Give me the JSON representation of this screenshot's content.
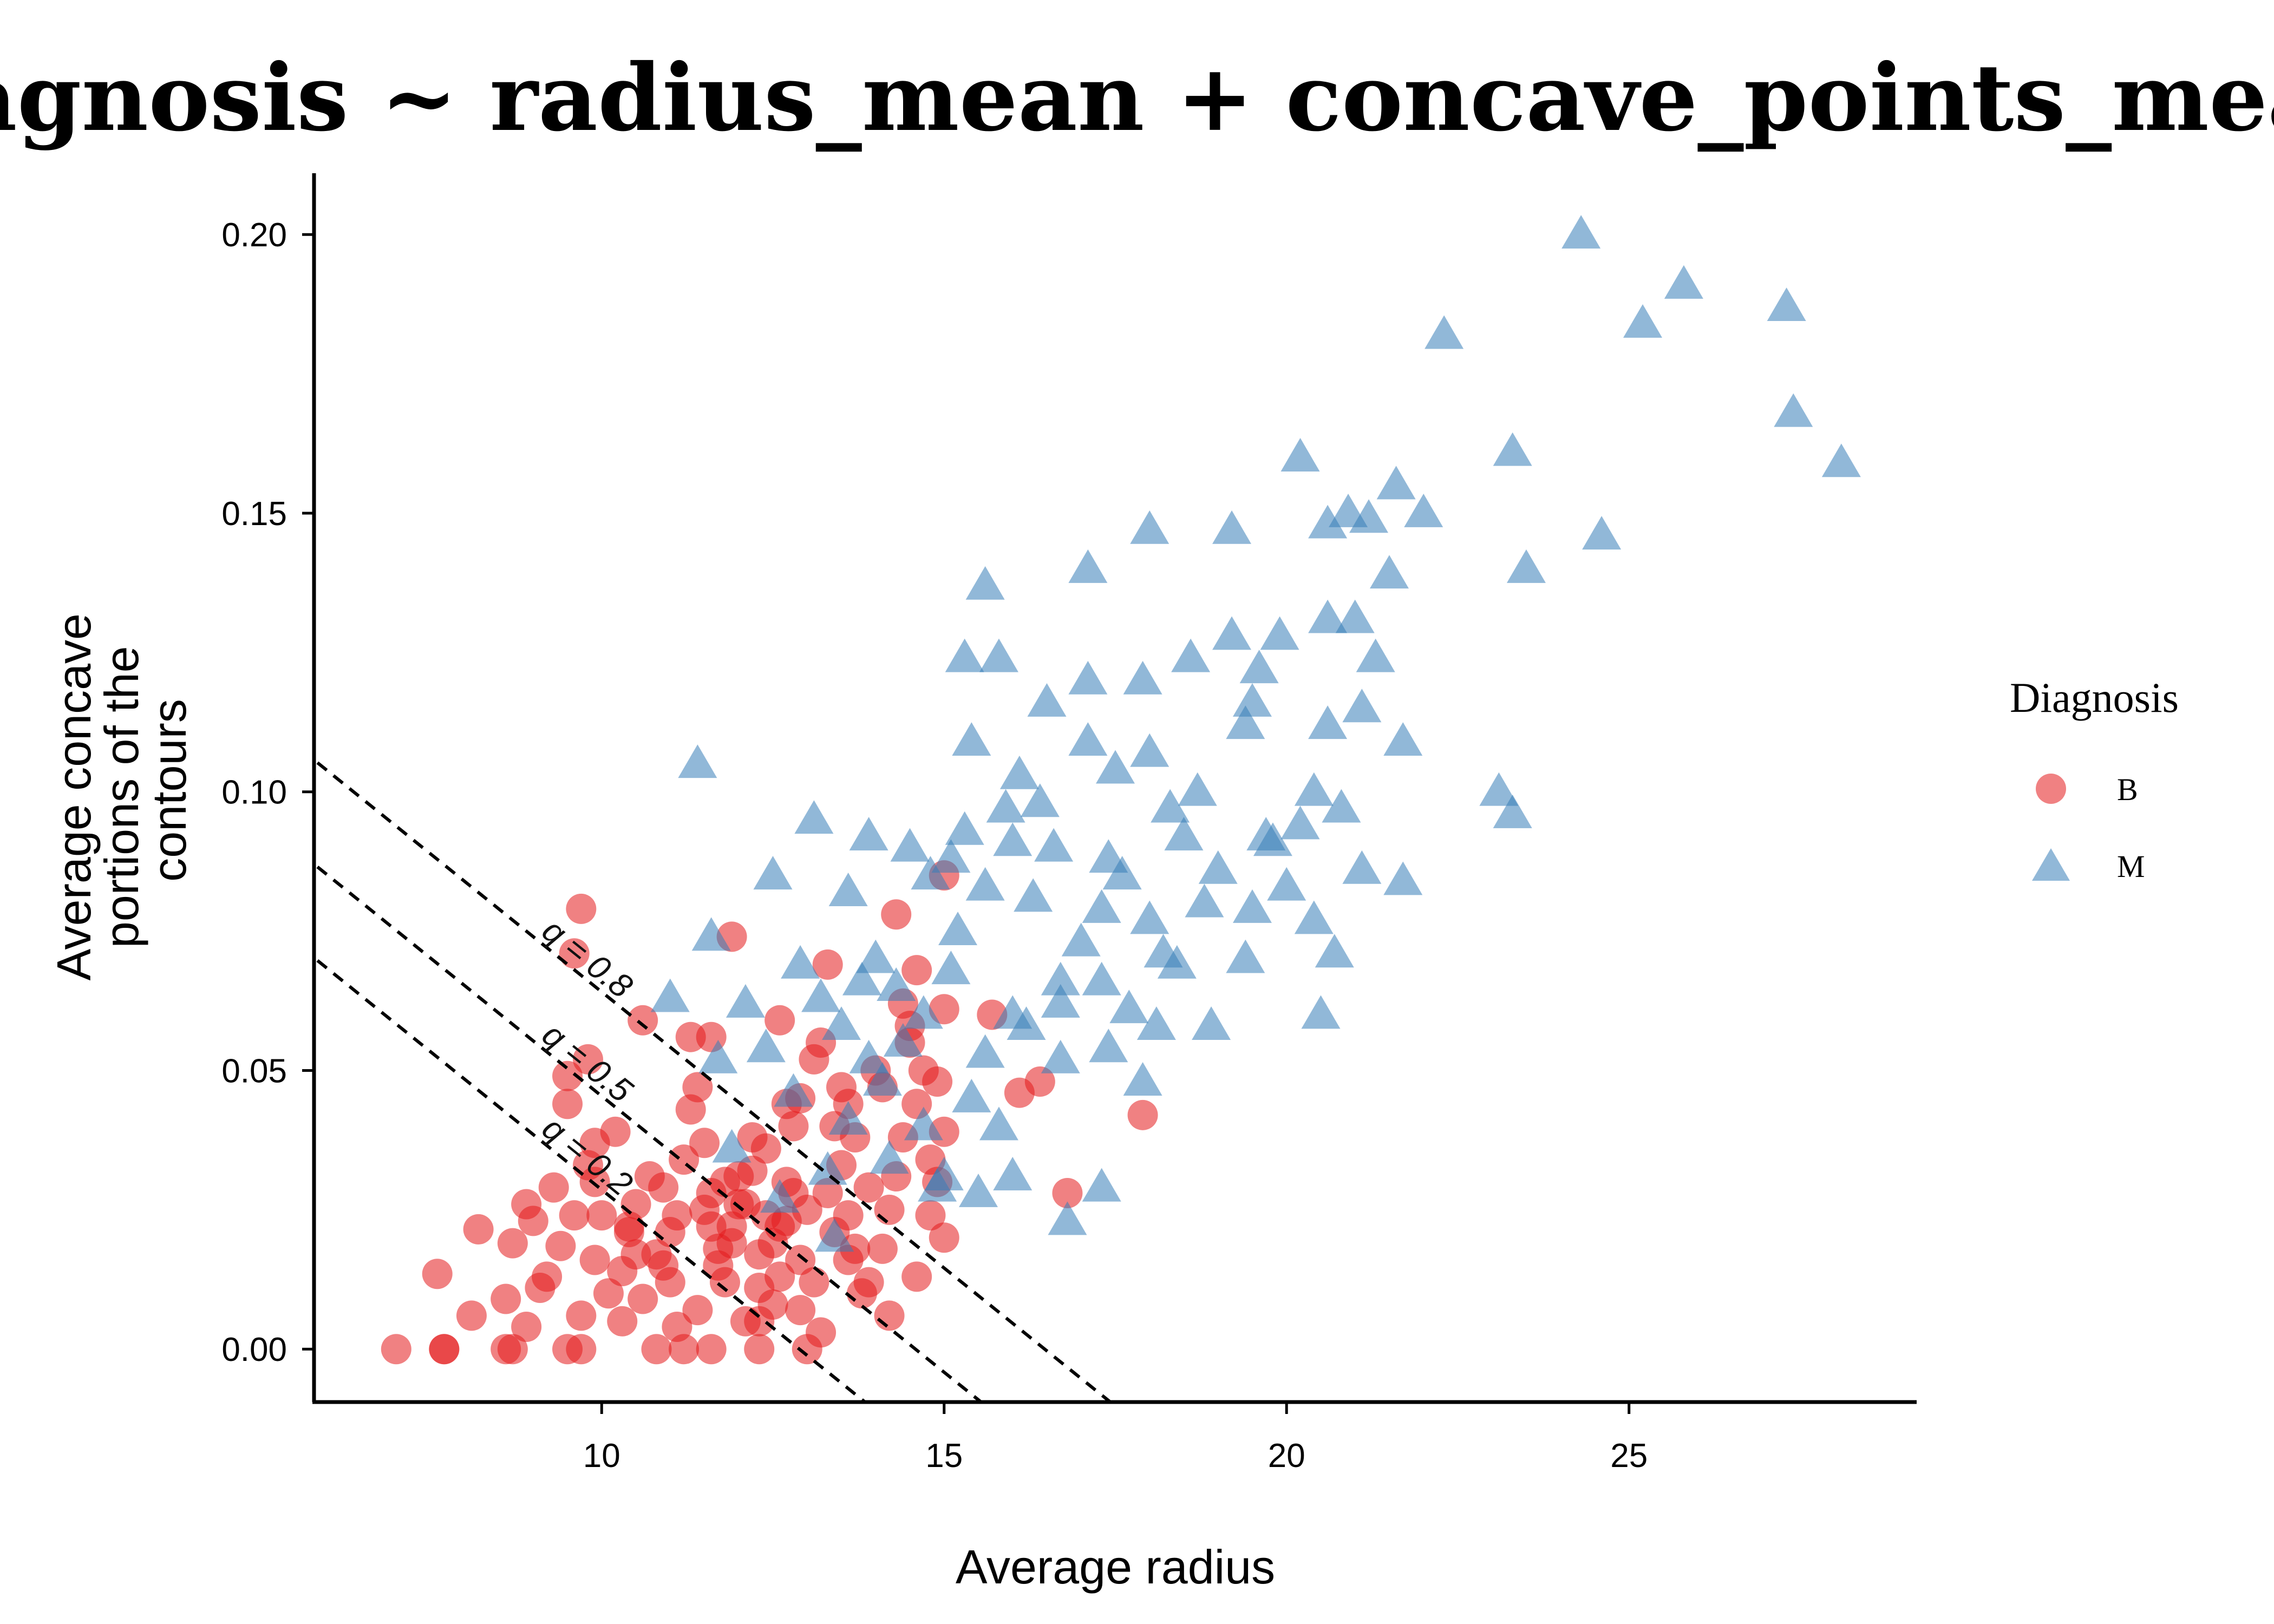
{
  "chart_data": {
    "type": "scatter",
    "title": "diagnosis ~ radius_mean + concave_points_mean",
    "xlabel": "Average radius",
    "ylabel_lines": [
      "Average concave",
      "portions of the",
      "contours"
    ],
    "xlim": [
      5.8,
      29.2
    ],
    "ylim": [
      -0.0095,
      0.211
    ],
    "x_ticks": [
      10,
      15,
      20,
      25
    ],
    "y_ticks": [
      0.0,
      0.05,
      0.1,
      0.15,
      0.2
    ],
    "x_tick_labels": [
      "10",
      "15",
      "20",
      "25"
    ],
    "y_tick_labels": [
      "0.00",
      "0.05",
      "0.10",
      "0.15",
      "0.20"
    ],
    "grid": false,
    "legend": {
      "title": "Diagnosis",
      "position": "right",
      "entries": [
        {
          "label": "B",
          "shape": "circle",
          "color": "#e41a1c"
        },
        {
          "label": "M",
          "shape": "triangle",
          "color": "#377eb8"
        }
      ]
    },
    "boundaries": [
      {
        "label": "q = 0.8",
        "intercept": 0.1632,
        "slope": -0.00991
      },
      {
        "label": "q = 0.5",
        "intercept": 0.1445,
        "slope": -0.00991
      },
      {
        "label": "q = 0.2",
        "intercept": 0.1277,
        "slope": -0.00991
      }
    ],
    "series": [
      {
        "name": "B",
        "marker": "circle",
        "color": "#e41a1c",
        "points": [
          [
            7.0,
            0.0
          ],
          [
            7.7,
            0.0
          ],
          [
            7.7,
            0.0
          ],
          [
            8.6,
            0.0
          ],
          [
            8.7,
            0.0
          ],
          [
            9.5,
            0.0
          ],
          [
            9.7,
            0.0
          ],
          [
            10.8,
            0.0
          ],
          [
            11.2,
            0.0
          ],
          [
            11.6,
            0.0
          ],
          [
            12.3,
            0.0
          ],
          [
            13.0,
            0.0
          ],
          [
            7.6,
            0.0135
          ],
          [
            8.2,
            0.0215
          ],
          [
            8.1,
            0.006
          ],
          [
            8.6,
            0.009
          ],
          [
            8.7,
            0.019
          ],
          [
            9.0,
            0.023
          ],
          [
            8.9,
            0.004
          ],
          [
            9.2,
            0.013
          ],
          [
            9.4,
            0.0185
          ],
          [
            9.6,
            0.024
          ],
          [
            9.3,
            0.029
          ],
          [
            9.5,
            0.044
          ],
          [
            9.5,
            0.049
          ],
          [
            9.8,
            0.052
          ],
          [
            9.9,
            0.037
          ],
          [
            10.2,
            0.039
          ],
          [
            9.9,
            0.03
          ],
          [
            10.0,
            0.024
          ],
          [
            10.4,
            0.021
          ],
          [
            10.5,
            0.026
          ],
          [
            10.7,
            0.031
          ],
          [
            10.9,
            0.029
          ],
          [
            10.3,
            0.014
          ],
          [
            10.1,
            0.01
          ],
          [
            9.7,
            0.006
          ],
          [
            9.9,
            0.016
          ],
          [
            10.6,
            0.009
          ],
          [
            10.8,
            0.017
          ],
          [
            11.0,
            0.012
          ],
          [
            11.1,
            0.024
          ],
          [
            11.2,
            0.034
          ],
          [
            11.3,
            0.043
          ],
          [
            11.4,
            0.047
          ],
          [
            11.3,
            0.056
          ],
          [
            11.6,
            0.056
          ],
          [
            11.9,
            0.074
          ],
          [
            10.6,
            0.059
          ],
          [
            11.5,
            0.037
          ],
          [
            11.6,
            0.028
          ],
          [
            11.7,
            0.018
          ],
          [
            11.8,
            0.012
          ],
          [
            11.4,
            0.007
          ],
          [
            11.9,
            0.022
          ],
          [
            12.0,
            0.031
          ],
          [
            12.1,
            0.026
          ],
          [
            12.2,
            0.038
          ],
          [
            12.4,
            0.036
          ],
          [
            12.3,
            0.017
          ],
          [
            12.5,
            0.008
          ],
          [
            12.6,
            0.013
          ],
          [
            12.6,
            0.022
          ],
          [
            12.7,
            0.03
          ],
          [
            12.8,
            0.04
          ],
          [
            12.9,
            0.045
          ],
          [
            12.6,
            0.059
          ],
          [
            13.1,
            0.052
          ],
          [
            13.3,
            0.069
          ],
          [
            13.5,
            0.047
          ],
          [
            13.6,
            0.044
          ],
          [
            13.7,
            0.038
          ],
          [
            13.3,
            0.028
          ],
          [
            13.4,
            0.021
          ],
          [
            13.6,
            0.016
          ],
          [
            13.1,
            0.012
          ],
          [
            12.9,
            0.007
          ],
          [
            13.2,
            0.003
          ],
          [
            13.9,
            0.012
          ],
          [
            14.1,
            0.018
          ],
          [
            14.2,
            0.025
          ],
          [
            14.3,
            0.031
          ],
          [
            14.4,
            0.038
          ],
          [
            14.6,
            0.044
          ],
          [
            14.7,
            0.05
          ],
          [
            14.9,
            0.048
          ],
          [
            14.5,
            0.055
          ],
          [
            14.4,
            0.062
          ],
          [
            14.6,
            0.068
          ],
          [
            14.3,
            0.078
          ],
          [
            15.0,
            0.061
          ],
          [
            15.0,
            0.085
          ],
          [
            15.7,
            0.06
          ],
          [
            16.1,
            0.046
          ],
          [
            16.4,
            0.048
          ],
          [
            16.8,
            0.028
          ],
          [
            17.9,
            0.042
          ],
          [
            15.0,
            0.039
          ],
          [
            14.9,
            0.03
          ],
          [
            15.0,
            0.02
          ],
          [
            14.8,
            0.024
          ],
          [
            14.6,
            0.013
          ],
          [
            14.2,
            0.006
          ],
          [
            13.8,
            0.01
          ],
          [
            13.0,
            0.025
          ],
          [
            12.4,
            0.024
          ],
          [
            11.9,
            0.019
          ],
          [
            11.5,
            0.025
          ],
          [
            11.0,
            0.021
          ],
          [
            10.9,
            0.015
          ],
          [
            10.4,
            0.022
          ],
          [
            9.8,
            0.033
          ],
          [
            9.7,
            0.079
          ],
          [
            9.6,
            0.071
          ],
          [
            12.0,
            0.026
          ],
          [
            12.2,
            0.032
          ],
          [
            11.8,
            0.03
          ],
          [
            12.5,
            0.019
          ],
          [
            13.5,
            0.033
          ],
          [
            12.7,
            0.044
          ],
          [
            13.9,
            0.029
          ],
          [
            11.7,
            0.015
          ],
          [
            12.3,
            0.011
          ],
          [
            13.7,
            0.018
          ],
          [
            14.8,
            0.034
          ],
          [
            10.5,
            0.017
          ],
          [
            9.1,
            0.011
          ],
          [
            8.9,
            0.026
          ],
          [
            12.8,
            0.028
          ],
          [
            13.4,
            0.04
          ],
          [
            14.0,
            0.05
          ],
          [
            13.2,
            0.055
          ],
          [
            11.1,
            0.004
          ],
          [
            12.1,
            0.005
          ],
          [
            12.9,
            0.016
          ],
          [
            12.3,
            0.005
          ],
          [
            11.6,
            0.022
          ],
          [
            12.7,
            0.023
          ],
          [
            13.6,
            0.024
          ],
          [
            14.1,
            0.047
          ],
          [
            14.5,
            0.058
          ],
          [
            10.3,
            0.005
          ]
        ]
      },
      {
        "name": "M",
        "marker": "triangle",
        "color": "#377eb8",
        "points": [
          [
            24.3,
            0.2
          ],
          [
            25.8,
            0.191
          ],
          [
            25.2,
            0.184
          ],
          [
            27.3,
            0.187
          ],
          [
            22.3,
            0.182
          ],
          [
            27.4,
            0.168
          ],
          [
            28.1,
            0.159
          ],
          [
            23.3,
            0.161
          ],
          [
            20.2,
            0.16
          ],
          [
            21.6,
            0.155
          ],
          [
            20.6,
            0.148
          ],
          [
            20.9,
            0.15
          ],
          [
            21.2,
            0.149
          ],
          [
            22.0,
            0.15
          ],
          [
            23.5,
            0.14
          ],
          [
            24.6,
            0.146
          ],
          [
            21.5,
            0.139
          ],
          [
            18.0,
            0.147
          ],
          [
            19.2,
            0.147
          ],
          [
            17.1,
            0.14
          ],
          [
            15.6,
            0.137
          ],
          [
            20.6,
            0.131
          ],
          [
            19.9,
            0.128
          ],
          [
            19.2,
            0.128
          ],
          [
            21.0,
            0.131
          ],
          [
            21.3,
            0.124
          ],
          [
            19.6,
            0.122
          ],
          [
            18.6,
            0.124
          ],
          [
            17.1,
            0.12
          ],
          [
            17.9,
            0.12
          ],
          [
            16.5,
            0.116
          ],
          [
            19.5,
            0.116
          ],
          [
            21.1,
            0.115
          ],
          [
            15.3,
            0.124
          ],
          [
            15.8,
            0.124
          ],
          [
            15.4,
            0.109
          ],
          [
            17.1,
            0.109
          ],
          [
            18.0,
            0.107
          ],
          [
            19.4,
            0.112
          ],
          [
            20.6,
            0.112
          ],
          [
            21.7,
            0.109
          ],
          [
            11.4,
            0.105
          ],
          [
            16.1,
            0.103
          ],
          [
            17.5,
            0.104
          ],
          [
            18.7,
            0.1
          ],
          [
            20.4,
            0.1
          ],
          [
            23.1,
            0.1
          ],
          [
            23.3,
            0.096
          ],
          [
            13.1,
            0.095
          ],
          [
            13.9,
            0.092
          ],
          [
            14.5,
            0.09
          ],
          [
            15.1,
            0.088
          ],
          [
            15.3,
            0.093
          ],
          [
            16.0,
            0.091
          ],
          [
            16.6,
            0.09
          ],
          [
            17.4,
            0.088
          ],
          [
            18.5,
            0.092
          ],
          [
            19.7,
            0.092
          ],
          [
            20.2,
            0.094
          ],
          [
            21.1,
            0.086
          ],
          [
            21.7,
            0.084
          ],
          [
            12.5,
            0.085
          ],
          [
            13.6,
            0.082
          ],
          [
            14.8,
            0.085
          ],
          [
            15.6,
            0.083
          ],
          [
            16.3,
            0.081
          ],
          [
            17.3,
            0.079
          ],
          [
            18.0,
            0.077
          ],
          [
            18.8,
            0.08
          ],
          [
            19.5,
            0.079
          ],
          [
            20.4,
            0.077
          ],
          [
            20.7,
            0.071
          ],
          [
            19.4,
            0.07
          ],
          [
            18.4,
            0.069
          ],
          [
            17.3,
            0.066
          ],
          [
            16.7,
            0.062
          ],
          [
            16.0,
            0.06
          ],
          [
            15.1,
            0.068
          ],
          [
            14.3,
            0.065
          ],
          [
            13.8,
            0.066
          ],
          [
            12.9,
            0.069
          ],
          [
            11.6,
            0.074
          ],
          [
            11.0,
            0.063
          ],
          [
            12.1,
            0.062
          ],
          [
            13.5,
            0.058
          ],
          [
            14.4,
            0.055
          ],
          [
            15.6,
            0.053
          ],
          [
            16.7,
            0.052
          ],
          [
            17.4,
            0.054
          ],
          [
            18.1,
            0.058
          ],
          [
            18.9,
            0.058
          ],
          [
            20.5,
            0.06
          ],
          [
            11.7,
            0.052
          ],
          [
            12.8,
            0.046
          ],
          [
            13.6,
            0.041
          ],
          [
            14.1,
            0.048
          ],
          [
            15.4,
            0.045
          ],
          [
            16.2,
            0.058
          ],
          [
            17.9,
            0.048
          ],
          [
            13.3,
            0.032
          ],
          [
            14.2,
            0.034
          ],
          [
            14.9,
            0.029
          ],
          [
            15.5,
            0.028
          ],
          [
            16.0,
            0.031
          ],
          [
            17.3,
            0.029
          ],
          [
            16.8,
            0.023
          ],
          [
            13.4,
            0.02
          ],
          [
            12.6,
            0.027
          ],
          [
            11.9,
            0.036
          ],
          [
            15.0,
            0.031
          ],
          [
            16.7,
            0.066
          ],
          [
            17.6,
            0.085
          ],
          [
            19.0,
            0.086
          ],
          [
            20.0,
            0.083
          ],
          [
            18.2,
            0.071
          ],
          [
            17.0,
            0.073
          ],
          [
            15.2,
            0.075
          ],
          [
            14.0,
            0.07
          ],
          [
            13.2,
            0.063
          ],
          [
            12.4,
            0.054
          ],
          [
            14.7,
            0.04
          ],
          [
            15.8,
            0.04
          ],
          [
            17.7,
            0.061
          ],
          [
            19.8,
            0.091
          ],
          [
            20.8,
            0.097
          ],
          [
            18.3,
            0.097
          ],
          [
            16.4,
            0.098
          ],
          [
            15.9,
            0.097
          ],
          [
            14.7,
            0.06
          ],
          [
            13.9,
            0.052
          ]
        ]
      }
    ]
  }
}
